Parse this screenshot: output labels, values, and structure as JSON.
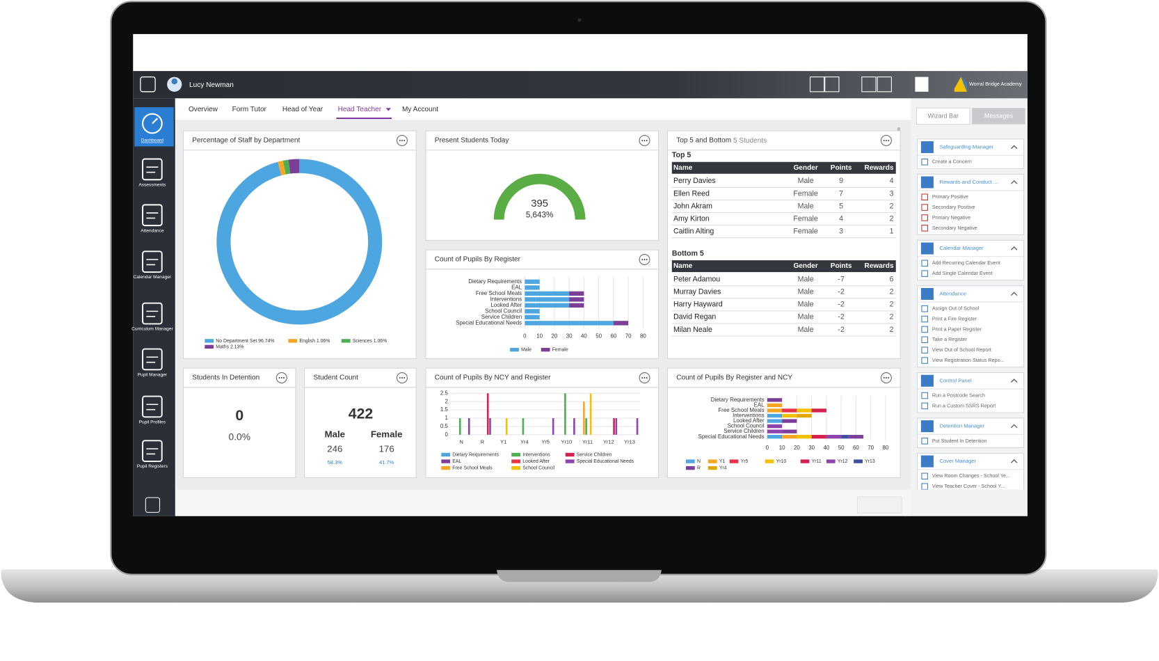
{
  "header": {
    "user": "Lucy Newman",
    "school": "Worral Bridge Academy"
  },
  "nav": [
    "Dashboard",
    "Assessments",
    "Attendance",
    "Calendar Manager",
    "Curriculum Manager",
    "Pupil Manager",
    "Pupil Profiles",
    "Pupil Registers"
  ],
  "tabs": [
    "Overview",
    "Form Tutor",
    "Head of Year",
    "Head Teacher",
    "My Account"
  ],
  "staff_chart": {
    "title": "Percentage of Staff by Department",
    "type": "pie",
    "series": [
      {
        "name": "No Department Set",
        "value": 96.74,
        "value_label": "96.74%",
        "color": "#4ea6e0"
      },
      {
        "name": "English",
        "value": 1.06,
        "value_label": "1.06%",
        "color": "#f5a623"
      },
      {
        "name": "Sciences",
        "value": 1.06,
        "value_label": "1.06%",
        "color": "#4caf50"
      },
      {
        "name": "Maths",
        "value": 2.13,
        "value_label": "2.13%",
        "color": "#7b3f98"
      }
    ]
  },
  "present": {
    "title": "Present Students Today",
    "count": 395,
    "percent": "5,643%",
    "color": "#5aac44"
  },
  "top5": {
    "title": "Top 5 and Bottom",
    "subtitle": "5 Students",
    "columns": [
      "Name",
      "Gender",
      "Points",
      "Rewards"
    ],
    "top": {
      "label": "Top 5",
      "rows": [
        [
          "Perry Davies",
          "Male",
          9,
          4
        ],
        [
          "Ellen Reed",
          "Female",
          7,
          3
        ],
        [
          "John  Akram",
          "Male",
          5,
          2
        ],
        [
          "Amy Kirton",
          "Female",
          4,
          2
        ],
        [
          "Caitlin Alting",
          "Female",
          3,
          1
        ]
      ]
    },
    "bottom": {
      "label": "Bottom 5",
      "rows": [
        [
          "Peter Adamou",
          "Male",
          -7,
          6
        ],
        [
          "Murray Davies",
          "Male",
          -2,
          2
        ],
        [
          "Harry Hayward",
          "Male",
          -2,
          2
        ],
        [
          "David Regan",
          "Male",
          -2,
          2
        ],
        [
          "Milan Neale",
          "Male",
          -2,
          2
        ]
      ]
    }
  },
  "register_chart": {
    "title": "Count of Pupils By Register",
    "type": "hbar",
    "categories": [
      "Dietary Requirements",
      "EAL",
      "Free School Meals",
      "Interventions",
      "Looked After",
      "School Council",
      "Service Children",
      "Special Educational Needs"
    ],
    "series": [
      {
        "name": "Male",
        "color": "#4ea6e0",
        "values": [
          10,
          10,
          30,
          30,
          30,
          10,
          10,
          60
        ]
      },
      {
        "name": "Female",
        "color": "#7b3f98",
        "values": [
          0,
          0,
          10,
          10,
          10,
          0,
          0,
          10
        ]
      }
    ],
    "xlim": [
      0,
      80
    ],
    "xticks": [
      0,
      10,
      20,
      30,
      40,
      50,
      60,
      70,
      80
    ]
  },
  "detention": {
    "title": "Students In Detention",
    "count": 0,
    "percent": "0.0%"
  },
  "student_count": {
    "title": "Student Count",
    "total": 422,
    "groups": [
      {
        "name": "Male",
        "count": 246,
        "percent": "58.3%"
      },
      {
        "name": "Female",
        "count": 176,
        "percent": "41.7%"
      }
    ]
  },
  "ncy_chart": {
    "title": "Count of Pupils By NCY and Register",
    "type": "bar",
    "categories": [
      "N",
      "R",
      "Y1",
      "Yr4",
      "Yr5",
      "Yr10",
      "Yr11",
      "Yr12",
      "Yr13"
    ],
    "series": [
      {
        "name": "Dietary Requirements",
        "color": "#4ea6e0",
        "values": [
          0,
          0,
          0,
          0,
          0,
          0,
          0,
          0,
          0
        ]
      },
      {
        "name": "EAL",
        "color": "#7b3f98",
        "values": [
          0,
          0,
          0,
          0,
          0,
          0,
          0,
          0,
          0
        ]
      },
      {
        "name": "Free School Meals",
        "color": "#f5a623",
        "values": [
          0,
          0,
          0,
          0,
          0,
          0,
          2,
          0,
          0
        ]
      },
      {
        "name": "Interventions",
        "color": "#4caf50",
        "values": [
          1,
          0,
          0,
          1,
          0,
          2.5,
          1,
          0,
          0
        ]
      },
      {
        "name": "Looked After",
        "color": "#e8334a",
        "values": [
          0,
          0,
          0,
          0,
          0,
          0,
          0,
          0,
          0
        ]
      },
      {
        "name": "School Council",
        "color": "#f2c200",
        "values": [
          0,
          0,
          1,
          0,
          0,
          0,
          2.5,
          0,
          0
        ]
      },
      {
        "name": "Service Children",
        "color": "#d6204f",
        "values": [
          0,
          2.5,
          0,
          0,
          0,
          0,
          0,
          1,
          0
        ]
      },
      {
        "name": "Special Educational Needs",
        "color": "#8e44ad",
        "values": [
          1,
          1,
          0,
          0,
          1,
          1,
          0,
          1,
          1
        ]
      }
    ],
    "ylim": [
      0,
      2.5
    ],
    "yticks": [
      0,
      0.5,
      1,
      1.5,
      2,
      2.5
    ]
  },
  "register_ncy_chart": {
    "title": "Count of Pupils By Register and NCY",
    "type": "hbar",
    "categories": [
      "Dietary Requirements",
      "EAL",
      "Free School Meals",
      "Interventions",
      "Looked After",
      "School Council",
      "Service Children",
      "Special Educational Needs"
    ],
    "series": [
      {
        "name": "N",
        "color": "#4ea6e0",
        "values": [
          0,
          0,
          0,
          10,
          10,
          0,
          0,
          10
        ]
      },
      {
        "name": "Y1",
        "color": "#f5a623",
        "values": [
          0,
          10,
          10,
          0,
          0,
          0,
          0,
          10
        ]
      },
      {
        "name": "Yr5",
        "color": "#e8334a",
        "values": [
          0,
          0,
          10,
          0,
          0,
          0,
          0,
          0
        ]
      },
      {
        "name": "Yr10",
        "color": "#f2c200",
        "values": [
          0,
          0,
          10,
          10,
          0,
          0,
          0,
          10
        ]
      },
      {
        "name": "Yr11",
        "color": "#d6204f",
        "values": [
          0,
          0,
          10,
          0,
          0,
          0,
          0,
          10
        ]
      },
      {
        "name": "Yr12",
        "color": "#8e44ad",
        "values": [
          0,
          0,
          0,
          0,
          0,
          10,
          10,
          10
        ]
      },
      {
        "name": "Yr13",
        "color": "#3d4e9e",
        "values": [
          0,
          0,
          0,
          0,
          0,
          0,
          0,
          5
        ]
      },
      {
        "name": "R",
        "color": "#7b3f98",
        "values": [
          10,
          0,
          0,
          0,
          10,
          0,
          10,
          10
        ]
      },
      {
        "name": "Yr4",
        "color": "#e0a800",
        "values": [
          0,
          0,
          0,
          10,
          0,
          0,
          0,
          0
        ]
      }
    ],
    "xlim": [
      0,
      80
    ],
    "xticks": [
      0,
      10,
      20,
      30,
      40,
      50,
      60,
      70,
      80
    ]
  },
  "wizard": {
    "tabs": [
      "Wizard Bar",
      "Messages"
    ],
    "groups": [
      {
        "title": "Safeguarding Manager",
        "items": [
          "Create a Concern"
        ]
      },
      {
        "title": "Rewards and Conduct ...",
        "items": [
          "Primary Positive",
          "Secondary Positive",
          "Primary Negative",
          "Secondary Negative"
        ]
      },
      {
        "title": "Calendar Manager",
        "items": [
          "Add Recurring Calendar Event",
          "Add Single Calendar Event"
        ]
      },
      {
        "title": "Attendance",
        "items": [
          "Assign Out of School",
          "Print a Fire Register",
          "Print a Paper Register",
          "Take a Register",
          "View Out of School Report",
          "View Registration Status Repo..."
        ]
      },
      {
        "title": "Control Panel",
        "items": [
          "Run a Postcode Search",
          "Run a Custom SSRS Report"
        ]
      },
      {
        "title": "Detention Manager",
        "items": [
          "Put Student In Detention"
        ]
      },
      {
        "title": "Cover Manager",
        "items": [
          "View Room Changes - School Ye...",
          "View Teacher Cover - School Y..."
        ]
      }
    ]
  }
}
